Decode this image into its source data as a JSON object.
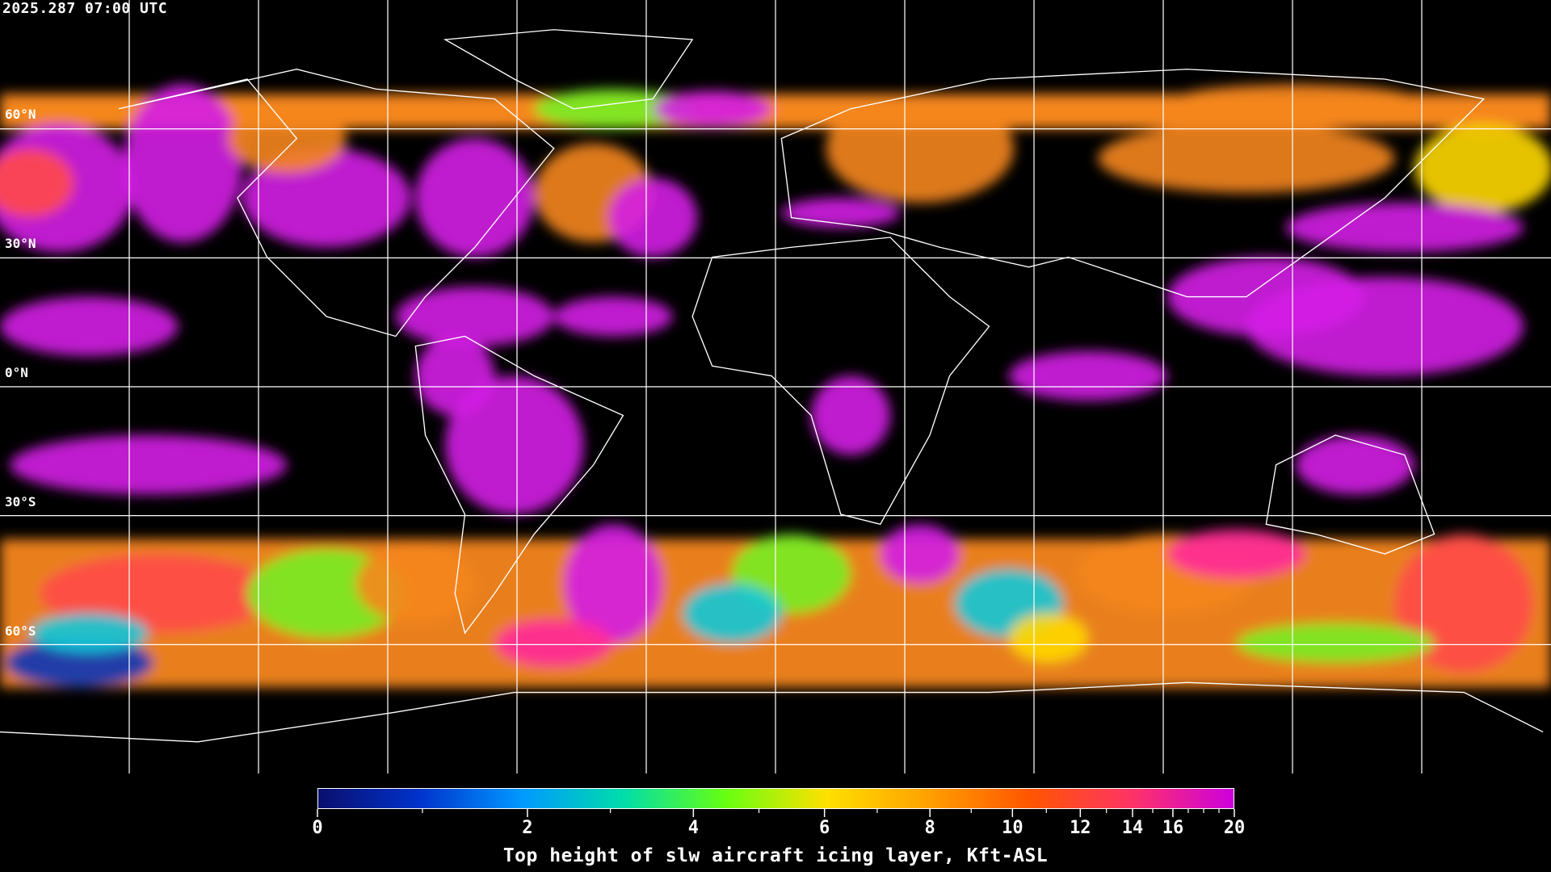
{
  "timestamp": "2025.287 07:00 UTC",
  "map": {
    "projection": "equirectangular",
    "graticule_spacing_deg": 30,
    "lat_labels": [
      "60°N",
      "30°N",
      "0°N",
      "30°S",
      "60°S"
    ],
    "lat_values": [
      60,
      30,
      0,
      -30,
      -60
    ],
    "background": "#000000",
    "coastline_color": "#ffffff"
  },
  "colorbar": {
    "title": "Top height of slw aircraft icing layer, Kft-ASL",
    "min": 0,
    "max": 20,
    "major_ticks": [
      {
        "value": 0,
        "label": "0"
      },
      {
        "value": 2,
        "label": "2"
      },
      {
        "value": 4,
        "label": "4"
      },
      {
        "value": 6,
        "label": "6"
      },
      {
        "value": 8,
        "label": "8"
      },
      {
        "value": 10,
        "label": "10"
      },
      {
        "value": 12,
        "label": "12"
      },
      {
        "value": 14,
        "label": "14"
      },
      {
        "value": 16,
        "label": "16"
      },
      {
        "value": 20,
        "label": "20"
      }
    ],
    "minor_ticks": [
      1,
      3,
      5,
      7,
      9,
      11,
      13,
      15,
      17,
      18,
      19
    ],
    "color_stops": [
      "#0a0f6e",
      "#0033cc",
      "#0099ff",
      "#00ddaa",
      "#66ff11",
      "#ffe000",
      "#ffa000",
      "#ff5500",
      "#ff3366",
      "#cc00dd"
    ]
  }
}
